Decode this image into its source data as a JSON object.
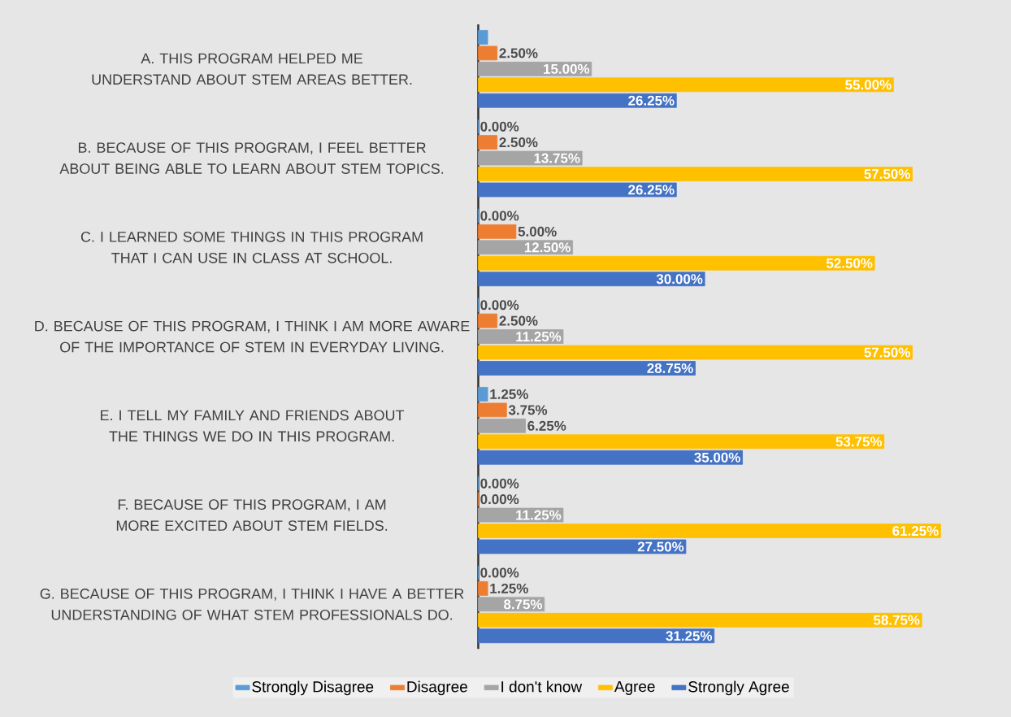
{
  "chart_data": {
    "type": "bar",
    "orientation": "horizontal",
    "legend": "bottom",
    "categories": [
      "A. THIS PROGRAM HELPED ME UNDERSTAND ABOUT STEM AREAS BETTER.",
      "B. BECAUSE OF THIS PROGRAM, I FEEL BETTER ABOUT BEING ABLE TO LEARN ABOUT STEM TOPICS.",
      "C. I LEARNED SOME THINGS IN THIS PROGRAM THAT I CAN USE IN CLASS AT SCHOOL.",
      "D. BECAUSE OF THIS PROGRAM, I THINK I AM MORE AWARE OF THE IMPORTANCE OF STEM IN EVERYDAY LIVING.",
      "E. I TELL MY FAMILY AND FRIENDS ABOUT THE THINGS WE DO IN THIS PROGRAM.",
      "F. BECAUSE OF THIS PROGRAM, I AM MORE EXCITED ABOUT STEM FIELDS.",
      "G. BECAUSE OF THIS PROGRAM, I THINK I HAVE A BETTER UNDERSTANDING OF WHAT STEM PROFESSIONALS DO."
    ],
    "series": [
      {
        "name": "Strongly Disagree",
        "color": "#5b9bd5",
        "values": [
          1.25,
          0,
          0,
          0,
          1.25,
          0,
          0
        ],
        "value_labels": [
          null,
          "0.00%",
          "0.00%",
          "0.00%",
          "1.25%",
          "0.00%",
          "0.00%"
        ]
      },
      {
        "name": "Disagree",
        "color": "#ed7d31",
        "values": [
          2.5,
          2.5,
          5,
          2.5,
          3.75,
          0,
          1.25
        ],
        "value_labels": [
          "2.50%",
          "2.50%",
          "5.00%",
          "2.50%",
          "3.75%",
          "0.00%",
          "1.25%"
        ]
      },
      {
        "name": "I don't know",
        "color": "#a5a5a5",
        "values": [
          15,
          13.75,
          12.5,
          11.25,
          6.25,
          11.25,
          8.75
        ],
        "value_labels": [
          "15.00%",
          "13.75%",
          "12.50%",
          "11.25%",
          "6.25%",
          "11.25%",
          "8.75%"
        ]
      },
      {
        "name": "Agree",
        "color": "#ffc000",
        "values": [
          55,
          57.5,
          52.5,
          57.5,
          53.75,
          61.25,
          58.75
        ],
        "value_labels": [
          "55.00%",
          "57.50%",
          "52.50%",
          "57.50%",
          "53.75%",
          "61.25%",
          "58.75%"
        ]
      },
      {
        "name": "Strongly Agree",
        "color": "#4472c4",
        "values": [
          26.25,
          26.25,
          30,
          28.75,
          35,
          27.5,
          31.25
        ],
        "value_labels": [
          "26.25%",
          "26.25%",
          "30.00%",
          "28.75%",
          "35.00%",
          "27.50%",
          "31.25%"
        ]
      }
    ]
  }
}
